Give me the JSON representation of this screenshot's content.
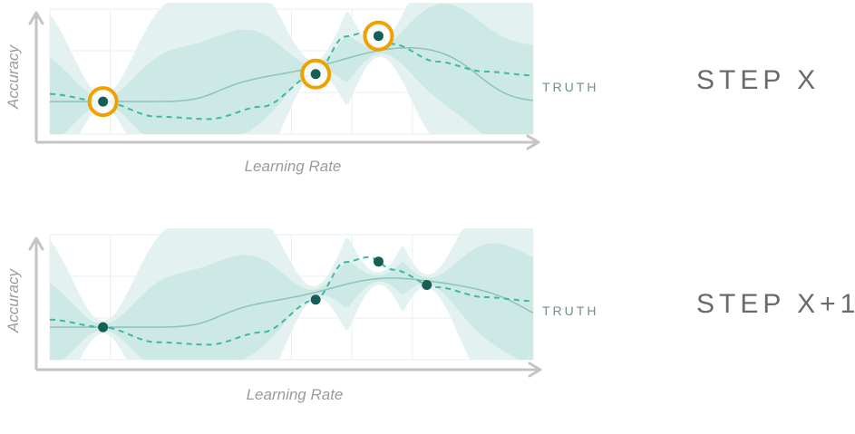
{
  "colors": {
    "axis": "#c4c4c4",
    "grid": "#e9efee",
    "band_outer": "#e3f2f0",
    "band_inner": "#c6e6e1",
    "mean_line": "#8fc5bd",
    "truth_line": "#3cb8a4",
    "observation": "#155f57",
    "highlight_ring": "#f2a000"
  },
  "panels": [
    {
      "id": "step-x",
      "step_label": "STEP X",
      "truth_label": "TRUTH",
      "x_axis_label": "Learning Rate",
      "y_axis_label": "Accuracy",
      "observations": [
        {
          "x": 0.11,
          "highlighted": true
        },
        {
          "x": 0.55,
          "highlighted": true
        },
        {
          "x": 0.68,
          "highlighted": true
        }
      ]
    },
    {
      "id": "step-x1",
      "step_label": "STEP X+1",
      "truth_label": "TRUTH",
      "x_axis_label": "Learning Rate",
      "y_axis_label": "Accuracy",
      "observations": [
        {
          "x": 0.11,
          "highlighted": false
        },
        {
          "x": 0.55,
          "highlighted": false
        },
        {
          "x": 0.68,
          "highlighted": false
        },
        {
          "x": 0.78,
          "highlighted": false
        }
      ]
    }
  ]
}
